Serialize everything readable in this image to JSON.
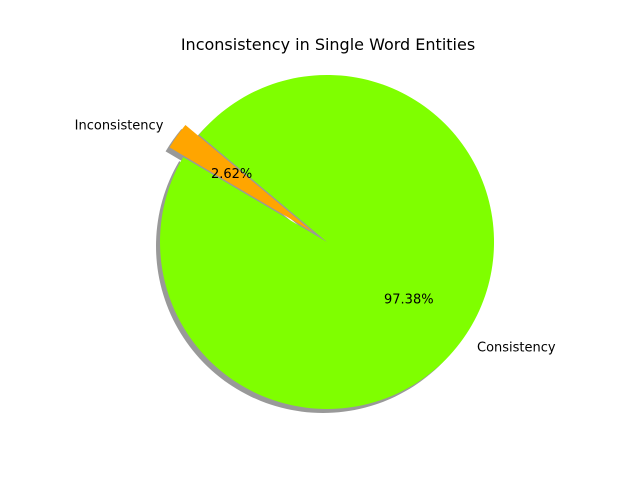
{
  "chart_data": {
    "type": "pie",
    "title": "Inconsistency in Single Word Entities",
    "categories": [
      "Inconsistency",
      "Consistency"
    ],
    "values": [
      2.62,
      97.38
    ],
    "percent_labels": [
      "2.62%",
      "97.38%"
    ],
    "colors": [
      "#ffa500",
      "#7fff00"
    ],
    "explode": [
      0.1,
      0
    ],
    "shadow": true,
    "start_angle_deg": 140,
    "legend": "none"
  }
}
